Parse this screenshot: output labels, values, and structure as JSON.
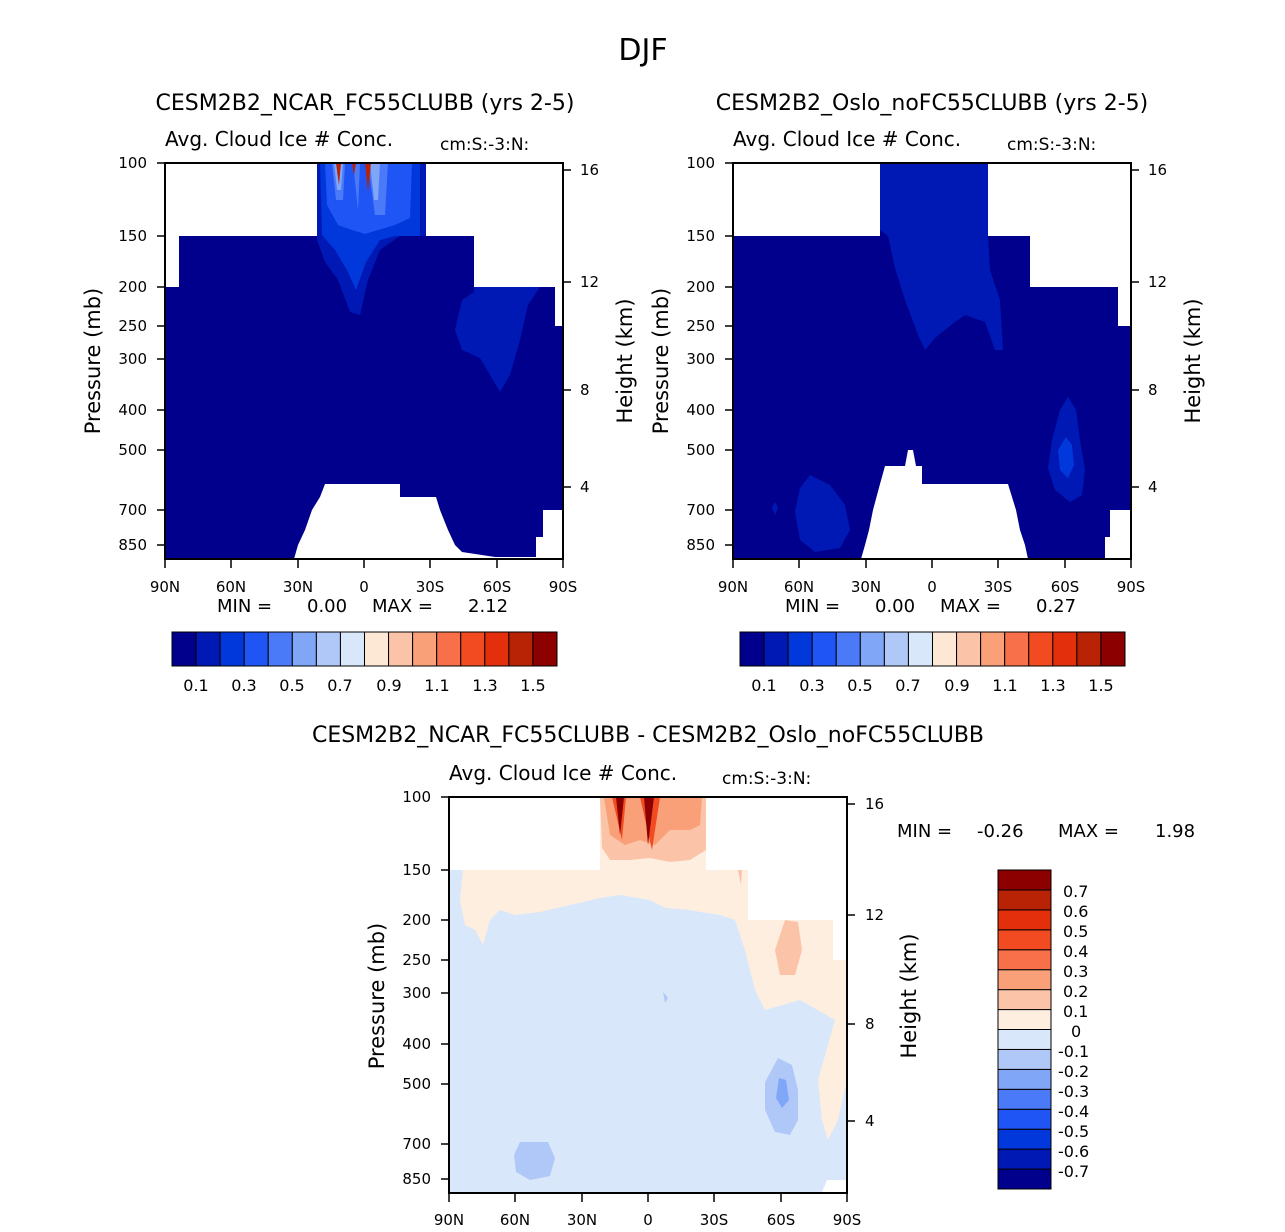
{
  "figure_title": "DJF",
  "colors": {
    "diverging_palette": [
      "#00008c",
      "#0018b4",
      "#0038dc",
      "#2055f5",
      "#4a7af8",
      "#80a6f8",
      "#b0c8f8",
      "#d8e8fa",
      "#fde8d6",
      "#fbc4a8",
      "#f9a078",
      "#f7704a",
      "#f24b22",
      "#e42f0c",
      "#b82205",
      "#8c0000"
    ],
    "anomaly_palette": [
      "#00008c",
      "#0018b4",
      "#0038dc",
      "#2055f5",
      "#4a7af8",
      "#80a6f8",
      "#b0c8f8",
      "#d8e8fa",
      "#fdeedf",
      "#fbc4a8",
      "#f9a078",
      "#f7704a",
      "#f24b22",
      "#e42f0c",
      "#b82205",
      "#8c0000"
    ]
  },
  "chart_data": [
    {
      "type": "heatmap",
      "panel": "left",
      "title": "CESM2B2_NCAR_FC55CLUBB (yrs 2-5)",
      "subtitle": "Avg. Cloud Ice # Conc.",
      "units": "cm:S:-3:N:",
      "xlabel": "",
      "ylabel": "Pressure (mb)",
      "ylabel_right": "Height (km)",
      "x_ticks": [
        "90N",
        "60N",
        "30N",
        "0",
        "30S",
        "60S",
        "90S"
      ],
      "y_ticks": [
        "100",
        "150",
        "200",
        "250",
        "300",
        "400",
        "500",
        "700",
        "850"
      ],
      "y2_ticks": [
        "16",
        "12",
        "8",
        "4"
      ],
      "stats": {
        "min_label": "MIN =",
        "min": "0.00",
        "max_label": "MAX =",
        "max": "2.12"
      },
      "colorbar_labels": [
        "0.1",
        "0.3",
        "0.5",
        "0.7",
        "0.9",
        "1.1",
        "1.3",
        "1.5"
      ],
      "description": "Cloud ice number concentration mostly in lowest bin (<0.1) throughout troposphere; higher values 0.3-2.1 near 100 mb between 20N and 15S."
    },
    {
      "type": "heatmap",
      "panel": "right",
      "title": "CESM2B2_Oslo_noFC55CLUBB (yrs 2-5)",
      "subtitle": "Avg. Cloud Ice # Conc.",
      "units": "cm:S:-3:N:",
      "xlabel": "",
      "ylabel": "Pressure (mb)",
      "ylabel_right": "Height (km)",
      "x_ticks": [
        "90N",
        "60N",
        "30N",
        "0",
        "30S",
        "60S",
        "90S"
      ],
      "y_ticks": [
        "100",
        "150",
        "200",
        "250",
        "300",
        "400",
        "500",
        "700",
        "850"
      ],
      "y2_ticks": [
        "16",
        "12",
        "8",
        "4"
      ],
      "stats": {
        "min_label": "MIN =",
        "min": "0.00",
        "max_label": "MAX =",
        "max": "0.27"
      },
      "colorbar_labels": [
        "0.1",
        "0.3",
        "0.5",
        "0.7",
        "0.9",
        "1.1",
        "1.3",
        "1.5"
      ],
      "description": "Values mostly below 0.1; 0.1-0.3 in upper troposphere 30N-30S and small maxima near 60S mid-levels and 45N lower levels."
    },
    {
      "type": "heatmap",
      "panel": "difference",
      "title": "CESM2B2_NCAR_FC55CLUBB - CESM2B2_Oslo_noFC55CLUBB",
      "subtitle": "Avg. Cloud Ice # Conc.",
      "units": "cm:S:-3:N:",
      "xlabel": "",
      "ylabel": "Pressure (mb)",
      "ylabel_right": "Height (km)",
      "x_ticks": [
        "90N",
        "60N",
        "30N",
        "0",
        "30S",
        "60S",
        "90S"
      ],
      "y_ticks": [
        "100",
        "150",
        "200",
        "250",
        "300",
        "400",
        "500",
        "700",
        "850"
      ],
      "y2_ticks": [
        "16",
        "12",
        "8",
        "4"
      ],
      "stats": {
        "min_label": "MIN =",
        "min": "-0.26",
        "max_label": "MAX =",
        "max": "1.98"
      },
      "colorbar_labels": [
        "0.7",
        "0.6",
        "0.5",
        "0.4",
        "0.3",
        "0.2",
        "0.1",
        "0",
        "-0.1",
        "-0.2",
        "-0.3",
        "-0.4",
        "-0.5",
        "-0.6",
        "-0.7"
      ],
      "description": "Slightly negative (-0.1 to 0) over most of troposphere; positive near tropical tropopause (up to ~2) and upper levels 20N-60S; negative -0.2 to -0.3 near 60S 500mb and 45N 850mb."
    }
  ]
}
